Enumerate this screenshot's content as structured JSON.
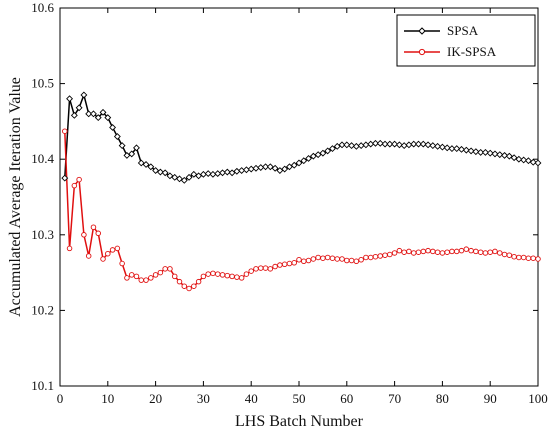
{
  "chart_data": {
    "type": "line",
    "title": "",
    "xlabel": "LHS Batch Number",
    "ylabel": "Accumulated Average Iteration Value",
    "xlim": [
      0,
      100
    ],
    "ylim": [
      10.1,
      10.6
    ],
    "xticks": [
      "0",
      "10",
      "20",
      "30",
      "40",
      "50",
      "60",
      "70",
      "80",
      "90",
      "100"
    ],
    "yticks": [
      "10.1",
      "10.2",
      "10.3",
      "10.4",
      "10.5",
      "10.6"
    ],
    "grid": false,
    "legend_position": "top-right",
    "x": [
      1,
      2,
      3,
      4,
      5,
      6,
      7,
      8,
      9,
      10,
      11,
      12,
      13,
      14,
      15,
      16,
      17,
      18,
      19,
      20,
      21,
      22,
      23,
      24,
      25,
      26,
      27,
      28,
      29,
      30,
      31,
      32,
      33,
      34,
      35,
      36,
      37,
      38,
      39,
      40,
      41,
      42,
      43,
      44,
      45,
      46,
      47,
      48,
      49,
      50,
      51,
      52,
      53,
      54,
      55,
      56,
      57,
      58,
      59,
      60,
      61,
      62,
      63,
      64,
      65,
      66,
      67,
      68,
      69,
      70,
      71,
      72,
      73,
      74,
      75,
      76,
      77,
      78,
      79,
      80,
      81,
      82,
      83,
      84,
      85,
      86,
      87,
      88,
      89,
      90,
      91,
      92,
      93,
      94,
      95,
      96,
      97,
      98,
      99,
      100
    ],
    "series": [
      {
        "name": "SPSA",
        "color": "#000000",
        "marker": "diamond",
        "values": [
          10.375,
          10.48,
          10.458,
          10.468,
          10.485,
          10.46,
          10.46,
          10.455,
          10.462,
          10.455,
          10.442,
          10.43,
          10.418,
          10.405,
          10.407,
          10.415,
          10.395,
          10.393,
          10.39,
          10.385,
          10.383,
          10.382,
          10.378,
          10.376,
          10.374,
          10.372,
          10.376,
          10.38,
          10.378,
          10.38,
          10.381,
          10.38,
          10.381,
          10.382,
          10.383,
          10.382,
          10.384,
          10.385,
          10.386,
          10.387,
          10.388,
          10.389,
          10.39,
          10.39,
          10.388,
          10.385,
          10.387,
          10.39,
          10.392,
          10.395,
          10.398,
          10.401,
          10.404,
          10.406,
          10.408,
          10.411,
          10.414,
          10.417,
          10.419,
          10.419,
          10.418,
          10.417,
          10.418,
          10.419,
          10.42,
          10.421,
          10.421,
          10.42,
          10.42,
          10.42,
          10.419,
          10.418,
          10.419,
          10.42,
          10.42,
          10.42,
          10.419,
          10.418,
          10.417,
          10.416,
          10.415,
          10.414,
          10.414,
          10.413,
          10.412,
          10.411,
          10.41,
          10.409,
          10.409,
          10.408,
          10.407,
          10.406,
          10.405,
          10.404,
          10.402,
          10.4,
          10.399,
          10.398,
          10.396,
          10.395
        ]
      },
      {
        "name": "IK-SPSA",
        "color": "#e01010",
        "marker": "circle",
        "values": [
          10.437,
          10.282,
          10.365,
          10.373,
          10.3,
          10.272,
          10.31,
          10.302,
          10.268,
          10.275,
          10.28,
          10.282,
          10.262,
          10.243,
          10.247,
          10.245,
          10.24,
          10.24,
          10.243,
          10.247,
          10.25,
          10.255,
          10.255,
          10.245,
          10.238,
          10.232,
          10.229,
          10.232,
          10.238,
          10.245,
          10.248,
          10.249,
          10.248,
          10.247,
          10.246,
          10.245,
          10.244,
          10.243,
          10.248,
          10.252,
          10.255,
          10.256,
          10.256,
          10.255,
          10.258,
          10.26,
          10.261,
          10.262,
          10.263,
          10.267,
          10.265,
          10.266,
          10.268,
          10.27,
          10.269,
          10.27,
          10.269,
          10.268,
          10.268,
          10.266,
          10.266,
          10.265,
          10.267,
          10.27,
          10.27,
          10.271,
          10.272,
          10.273,
          10.274,
          10.276,
          10.279,
          10.277,
          10.278,
          10.276,
          10.277,
          10.278,
          10.279,
          10.278,
          10.277,
          10.276,
          10.277,
          10.278,
          10.278,
          10.279,
          10.281,
          10.279,
          10.278,
          10.277,
          10.276,
          10.277,
          10.278,
          10.276,
          10.274,
          10.273,
          10.271,
          10.27,
          10.27,
          10.269,
          10.269,
          10.268
        ]
      }
    ]
  }
}
